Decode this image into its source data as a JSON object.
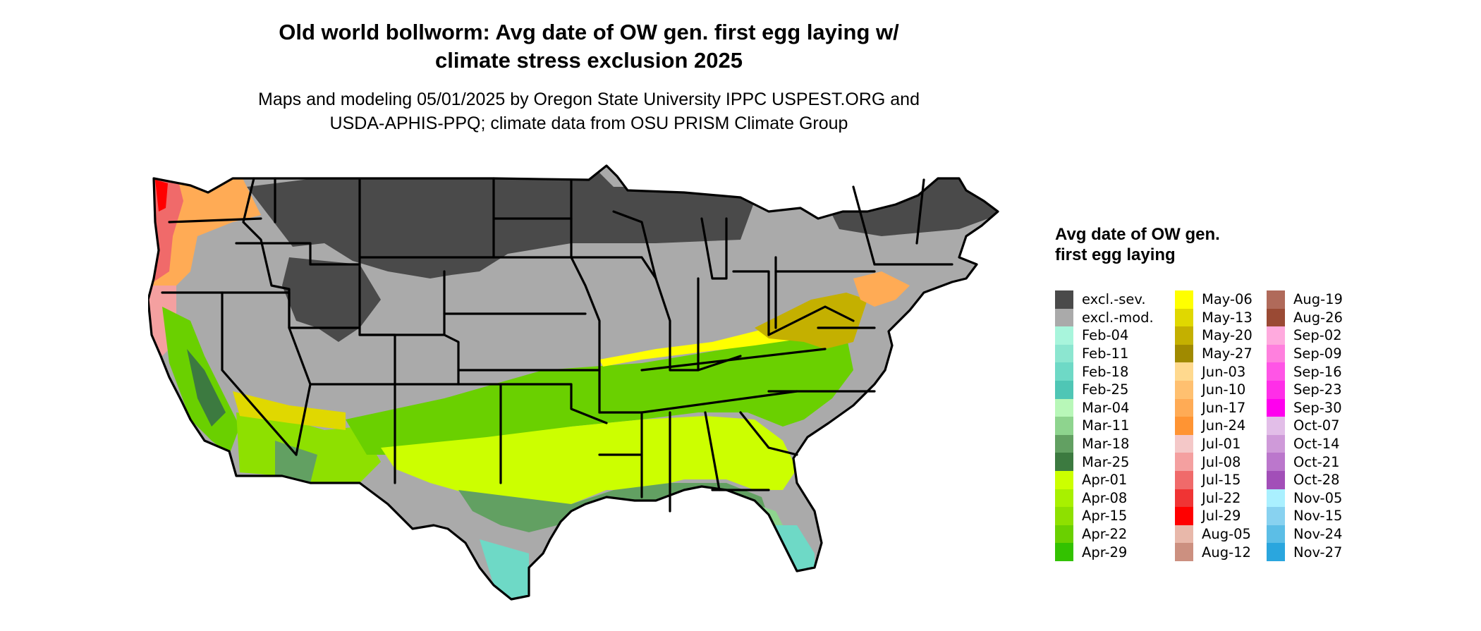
{
  "title_line1": "Old world bollworm: Avg date of OW gen. first egg laying w/",
  "title_line2": "climate stress exclusion 2025",
  "subtitle_line1": "Maps and modeling 05/01/2025 by Oregon State University IPPC USPEST.ORG and",
  "subtitle_line2": "USDA-APHIS-PPQ; climate data from OSU PRISM Climate Group",
  "legend": {
    "title": "Avg date of OW gen. first egg laying",
    "columns": [
      [
        {
          "label": "excl.-sev.",
          "color": "#4a4a4a"
        },
        {
          "label": "excl.-mod.",
          "color": "#aaaaaa"
        },
        {
          "label": "Feb-04",
          "color": "#a8f5dc"
        },
        {
          "label": "Feb-11",
          "color": "#8ce6d0"
        },
        {
          "label": "Feb-18",
          "color": "#6ed9c6"
        },
        {
          "label": "Feb-25",
          "color": "#4fc6b5"
        },
        {
          "label": "Mar-04",
          "color": "#b8f7b8"
        },
        {
          "label": "Mar-11",
          "color": "#8ed48e"
        },
        {
          "label": "Mar-18",
          "color": "#62a062"
        },
        {
          "label": "Mar-25",
          "color": "#3c7a40"
        },
        {
          "label": "Apr-01",
          "color": "#ccff00"
        },
        {
          "label": "Apr-08",
          "color": "#a8f000"
        },
        {
          "label": "Apr-15",
          "color": "#8ee000"
        },
        {
          "label": "Apr-22",
          "color": "#6ad000"
        },
        {
          "label": "Apr-29",
          "color": "#33c200"
        }
      ],
      [
        {
          "label": "May-06",
          "color": "#ffff00"
        },
        {
          "label": "May-13",
          "color": "#e0d800"
        },
        {
          "label": "May-20",
          "color": "#c4b000"
        },
        {
          "label": "May-27",
          "color": "#a08a00"
        },
        {
          "label": "Jun-03",
          "color": "#ffd98e"
        },
        {
          "label": "Jun-10",
          "color": "#ffc070"
        },
        {
          "label": "Jun-17",
          "color": "#ffab55"
        },
        {
          "label": "Jun-24",
          "color": "#ff9433"
        },
        {
          "label": "Jul-01",
          "color": "#f4c8c8"
        },
        {
          "label": "Jul-08",
          "color": "#f4a0a0"
        },
        {
          "label": "Jul-15",
          "color": "#f06a6a"
        },
        {
          "label": "Jul-22",
          "color": "#f03434"
        },
        {
          "label": "Jul-29",
          "color": "#ff0000"
        },
        {
          "label": "Aug-05",
          "color": "#e8b8aa"
        },
        {
          "label": "Aug-12",
          "color": "#cc9080"
        }
      ],
      [
        {
          "label": "Aug-19",
          "color": "#b06a5a"
        },
        {
          "label": "Aug-26",
          "color": "#9a4a34"
        },
        {
          "label": "Sep-02",
          "color": "#ffaade"
        },
        {
          "label": "Sep-09",
          "color": "#ff80de"
        },
        {
          "label": "Sep-16",
          "color": "#ff55e6"
        },
        {
          "label": "Sep-23",
          "color": "#ff2ee8"
        },
        {
          "label": "Sep-30",
          "color": "#ff00ee"
        },
        {
          "label": "Oct-07",
          "color": "#e2bee8"
        },
        {
          "label": "Oct-14",
          "color": "#cf9ad9"
        },
        {
          "label": "Oct-21",
          "color": "#bb77cc"
        },
        {
          "label": "Oct-28",
          "color": "#a24fb8"
        },
        {
          "label": "Nov-05",
          "color": "#aaf0ff"
        },
        {
          "label": "Nov-15",
          "color": "#88d2f0"
        },
        {
          "label": "Nov-24",
          "color": "#5cbee6"
        },
        {
          "label": "Nov-27",
          "color": "#2aa6de"
        }
      ]
    ]
  }
}
